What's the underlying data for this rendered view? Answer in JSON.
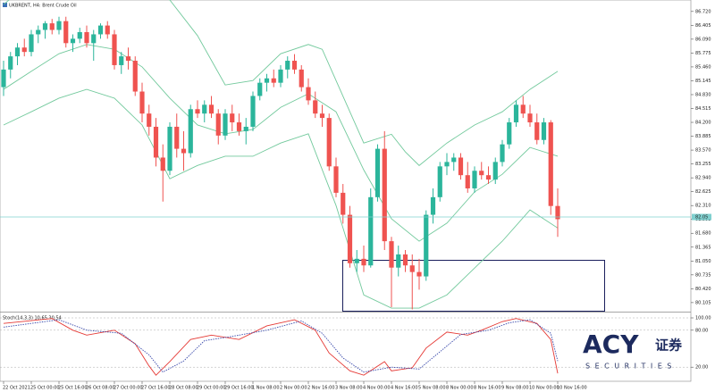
{
  "chart_data": [
    {
      "type": "candlestick",
      "title": "UKBRENT, H4: Brent Crude Oil",
      "categories": [
        "22 Oct 2021",
        null,
        null,
        null,
        "25 Oct 00:00",
        null,
        null,
        null,
        "25 Oct 16:00",
        null,
        null,
        null,
        "26 Oct 08:00",
        null,
        null,
        null,
        "27 Oct 00:00",
        null,
        null,
        null,
        "27 Oct 16:00",
        null,
        null,
        null,
        "28 Oct 08:00",
        null,
        null,
        null,
        "29 Oct 00:00",
        null,
        null,
        null,
        "29 Oct 16:00",
        null,
        null,
        null,
        "1 Nov 08:00",
        null,
        null,
        null,
        "2 Nov 00:00",
        null,
        null,
        null,
        "2 Nov 16:00",
        null,
        null,
        null,
        "3 Nov 08:00",
        null,
        null,
        null,
        "4 Nov 00:00",
        null,
        null,
        null,
        "4 Nov 16:00",
        null,
        null,
        null,
        "5 Nov 08:00",
        null,
        null,
        null,
        "8 Nov 00:00",
        null,
        null,
        null,
        "8 Nov 16:00",
        null,
        null,
        null,
        "9 Nov 08:00",
        null,
        null,
        null,
        "10 Nov 00:00",
        null,
        null,
        null,
        "10 Nov 16:00"
      ],
      "open": [
        85.0,
        85.4,
        85.7,
        85.9,
        85.8,
        86.2,
        86.3,
        86.45,
        86.3,
        86.5,
        86.0,
        86.1,
        86.25,
        86.0,
        86.2,
        86.4,
        86.2,
        85.5,
        85.7,
        85.6,
        84.9,
        84.4,
        84.1,
        83.4,
        83.1,
        84.1,
        83.6,
        83.5,
        84.5,
        84.4,
        84.6,
        84.4,
        83.9,
        84.4,
        84.2,
        84.0,
        84.1,
        84.8,
        85.1,
        85.2,
        85.1,
        85.4,
        85.6,
        85.4,
        85.0,
        84.7,
        84.4,
        84.3,
        83.2,
        82.6,
        82.1,
        81.0,
        81.1,
        80.95,
        82.5,
        83.6,
        81.5,
        80.9,
        81.2,
        80.95,
        80.8,
        80.7,
        82.1,
        82.5,
        83.2,
        83.3,
        83.4,
        83.0,
        82.7,
        83.1,
        83.0,
        82.9,
        83.3,
        83.7,
        84.2,
        84.6,
        84.4,
        84.2,
        83.8,
        84.2,
        82.3
      ],
      "high": [
        85.6,
        85.8,
        86.0,
        86.1,
        86.3,
        86.4,
        86.5,
        86.55,
        86.6,
        86.6,
        86.2,
        86.35,
        86.4,
        86.3,
        86.45,
        86.5,
        86.3,
        85.8,
        85.9,
        85.7,
        85.1,
        84.6,
        84.3,
        83.7,
        84.2,
        84.4,
        84.0,
        84.6,
        84.7,
        84.7,
        84.8,
        84.5,
        84.5,
        84.6,
        84.4,
        84.3,
        84.9,
        85.2,
        85.3,
        85.4,
        85.5,
        85.7,
        85.75,
        85.5,
        85.2,
        84.9,
        84.6,
        84.4,
        83.4,
        82.8,
        82.3,
        81.3,
        81.4,
        82.7,
        83.7,
        84.0,
        81.6,
        81.4,
        81.3,
        81.2,
        81.1,
        82.2,
        82.7,
        83.3,
        83.5,
        83.5,
        83.5,
        83.3,
        83.2,
        83.3,
        83.2,
        83.4,
        83.8,
        84.3,
        84.7,
        84.8,
        84.6,
        84.4,
        84.3,
        84.25,
        82.7
      ],
      "low": [
        84.8,
        85.2,
        85.5,
        85.7,
        85.7,
        86.0,
        86.1,
        86.2,
        86.2,
        85.9,
        85.8,
        86.0,
        85.9,
        85.6,
        86.1,
        86.1,
        85.4,
        85.3,
        85.4,
        84.8,
        84.2,
        83.9,
        83.2,
        82.4,
        83.0,
        83.4,
        83.1,
        83.4,
        84.3,
        84.2,
        84.3,
        83.7,
        83.8,
        84.0,
        83.9,
        83.7,
        84.0,
        84.7,
        84.9,
        85.0,
        85.0,
        85.2,
        85.3,
        84.9,
        84.6,
        84.3,
        84.1,
        83.1,
        82.5,
        81.9,
        80.9,
        80.8,
        80.8,
        80.9,
        82.4,
        81.3,
        80.0,
        80.7,
        80.8,
        79.95,
        80.4,
        80.6,
        81.9,
        82.4,
        83.0,
        83.1,
        82.9,
        82.6,
        82.6,
        82.9,
        82.8,
        82.8,
        83.2,
        83.6,
        84.1,
        84.3,
        84.1,
        83.7,
        83.7,
        82.1,
        81.6
      ],
      "close": [
        85.4,
        85.7,
        85.9,
        85.8,
        86.2,
        86.3,
        86.45,
        86.3,
        86.5,
        86.0,
        86.1,
        86.25,
        86.0,
        86.2,
        86.4,
        86.2,
        85.5,
        85.7,
        85.6,
        84.9,
        84.4,
        84.1,
        83.4,
        83.1,
        84.1,
        83.6,
        83.5,
        84.5,
        84.4,
        84.6,
        84.4,
        83.9,
        84.4,
        84.2,
        84.0,
        84.1,
        84.8,
        85.1,
        85.2,
        85.1,
        85.4,
        85.6,
        85.4,
        85.0,
        84.7,
        84.4,
        84.3,
        83.2,
        82.6,
        82.1,
        81.0,
        81.1,
        80.95,
        82.5,
        83.6,
        81.5,
        80.9,
        81.2,
        80.95,
        80.8,
        80.7,
        82.1,
        82.5,
        83.2,
        83.3,
        83.4,
        83.0,
        82.7,
        83.1,
        83.0,
        82.9,
        83.3,
        83.7,
        84.2,
        84.6,
        84.4,
        84.2,
        83.8,
        84.2,
        82.3,
        82.0
      ],
      "up_color": "#2bb59b",
      "down_color": "#ef5350",
      "bands": [
        {
          "color": "#72c99c",
          "x": [
            0,
            4,
            8,
            12,
            16,
            20,
            24,
            28,
            32,
            36,
            40,
            44,
            46,
            48,
            52,
            56,
            58,
            60,
            64,
            68,
            72,
            76,
            80
          ],
          "values": [
            86.88,
            87.39,
            87.79,
            88.0,
            87.59,
            87.18,
            86.98,
            86.17,
            85.05,
            85.15,
            85.76,
            85.97,
            85.86,
            85.15,
            83.73,
            83.93,
            83.53,
            83.22,
            83.73,
            84.14,
            84.44,
            84.95,
            85.36
          ]
        },
        {
          "color": "#72c99c",
          "x": [
            0,
            4,
            8,
            12,
            16,
            20,
            24,
            28,
            32,
            36,
            40,
            44,
            48,
            52,
            56,
            60,
            64,
            68,
            72,
            76,
            80
          ],
          "values": [
            84.95,
            85.36,
            85.76,
            85.97,
            85.86,
            85.46,
            84.75,
            84.14,
            83.94,
            84.04,
            84.54,
            84.85,
            84.44,
            83.12,
            82.01,
            81.5,
            81.91,
            82.62,
            83.02,
            83.63,
            83.43
          ]
        },
        {
          "color": "#72c99c",
          "x": [
            0,
            4,
            8,
            12,
            16,
            20,
            24,
            28,
            32,
            36,
            40,
            44,
            48,
            52,
            56,
            60,
            64,
            68,
            72,
            76,
            80
          ],
          "values": [
            84.14,
            84.44,
            84.75,
            84.95,
            84.75,
            84.14,
            82.92,
            83.22,
            83.43,
            83.43,
            83.73,
            83.94,
            82.31,
            80.28,
            79.98,
            79.98,
            80.28,
            80.89,
            81.5,
            82.21,
            81.8
          ]
        }
      ],
      "price_line": 82.05,
      "ylim": [
        79.92,
        86.98
      ],
      "yticks": [
        {
          "value": 86.72,
          "label": "86.720"
        },
        {
          "value": 86.405,
          "label": "86.405"
        },
        {
          "value": 86.09,
          "label": "86.090"
        },
        {
          "value": 85.775,
          "label": "85.775"
        },
        {
          "value": 85.46,
          "label": "85.460"
        },
        {
          "value": 85.145,
          "label": "85.145"
        },
        {
          "value": 84.83,
          "label": "84.830"
        },
        {
          "value": 84.515,
          "label": "84.515"
        },
        {
          "value": 84.2,
          "label": "84.200"
        },
        {
          "value": 83.885,
          "label": "83.885"
        },
        {
          "value": 83.57,
          "label": "83.570"
        },
        {
          "value": 83.255,
          "label": "83.255"
        },
        {
          "value": 82.94,
          "label": "82.940"
        },
        {
          "value": 82.625,
          "label": "82.625"
        },
        {
          "value": 82.31,
          "label": "82.310"
        },
        {
          "value": 81.995,
          "label": "81.995"
        },
        {
          "value": 81.68,
          "label": "81.680"
        },
        {
          "value": 81.365,
          "label": "81.365"
        },
        {
          "value": 81.05,
          "label": "81.050"
        },
        {
          "value": 80.735,
          "label": "80.735"
        },
        {
          "value": 80.42,
          "label": "80.420"
        },
        {
          "value": 80.105,
          "label": "80.105"
        }
      ],
      "logo_text": [
        "ACY",
        "证券",
        "SECURITIES"
      ]
    },
    {
      "type": "line",
      "title": "Stoch(14,3,3) 10.65 30.54",
      "series": [
        {
          "color": "#e53935",
          "dash": false,
          "x": [
            0,
            7,
            10,
            12,
            16,
            19,
            21,
            22,
            24,
            27,
            30,
            34,
            38,
            42,
            45,
            47,
            50,
            52,
            55,
            56,
            59,
            61,
            64,
            67,
            69,
            72,
            74,
            77,
            79,
            80
          ],
          "values": [
            91,
            99,
            80,
            72,
            80,
            58,
            22,
            7,
            29,
            65,
            72,
            65,
            87,
            97,
            80,
            43,
            14,
            7,
            29,
            14,
            19,
            51,
            77,
            72,
            80,
            94,
            99,
            91,
            65,
            10
          ]
        },
        {
          "color": "#3949ab",
          "dash": true,
          "x": [
            0,
            8,
            12,
            17,
            21,
            23,
            26,
            29,
            33,
            38,
            43,
            46,
            49,
            52,
            56,
            60,
            63,
            66,
            70,
            73,
            76,
            79,
            80
          ],
          "values": [
            85,
            97,
            80,
            75,
            40,
            12,
            30,
            63,
            70,
            80,
            95,
            75,
            35,
            12,
            20,
            17,
            45,
            73,
            80,
            92,
            97,
            75,
            30
          ]
        }
      ],
      "ylim": [
        0,
        100
      ],
      "yticks": [
        {
          "value": 100,
          "label": "100.00"
        },
        {
          "value": 80,
          "label": "80.00"
        },
        {
          "value": 20,
          "label": "20.00"
        }
      ]
    }
  ]
}
